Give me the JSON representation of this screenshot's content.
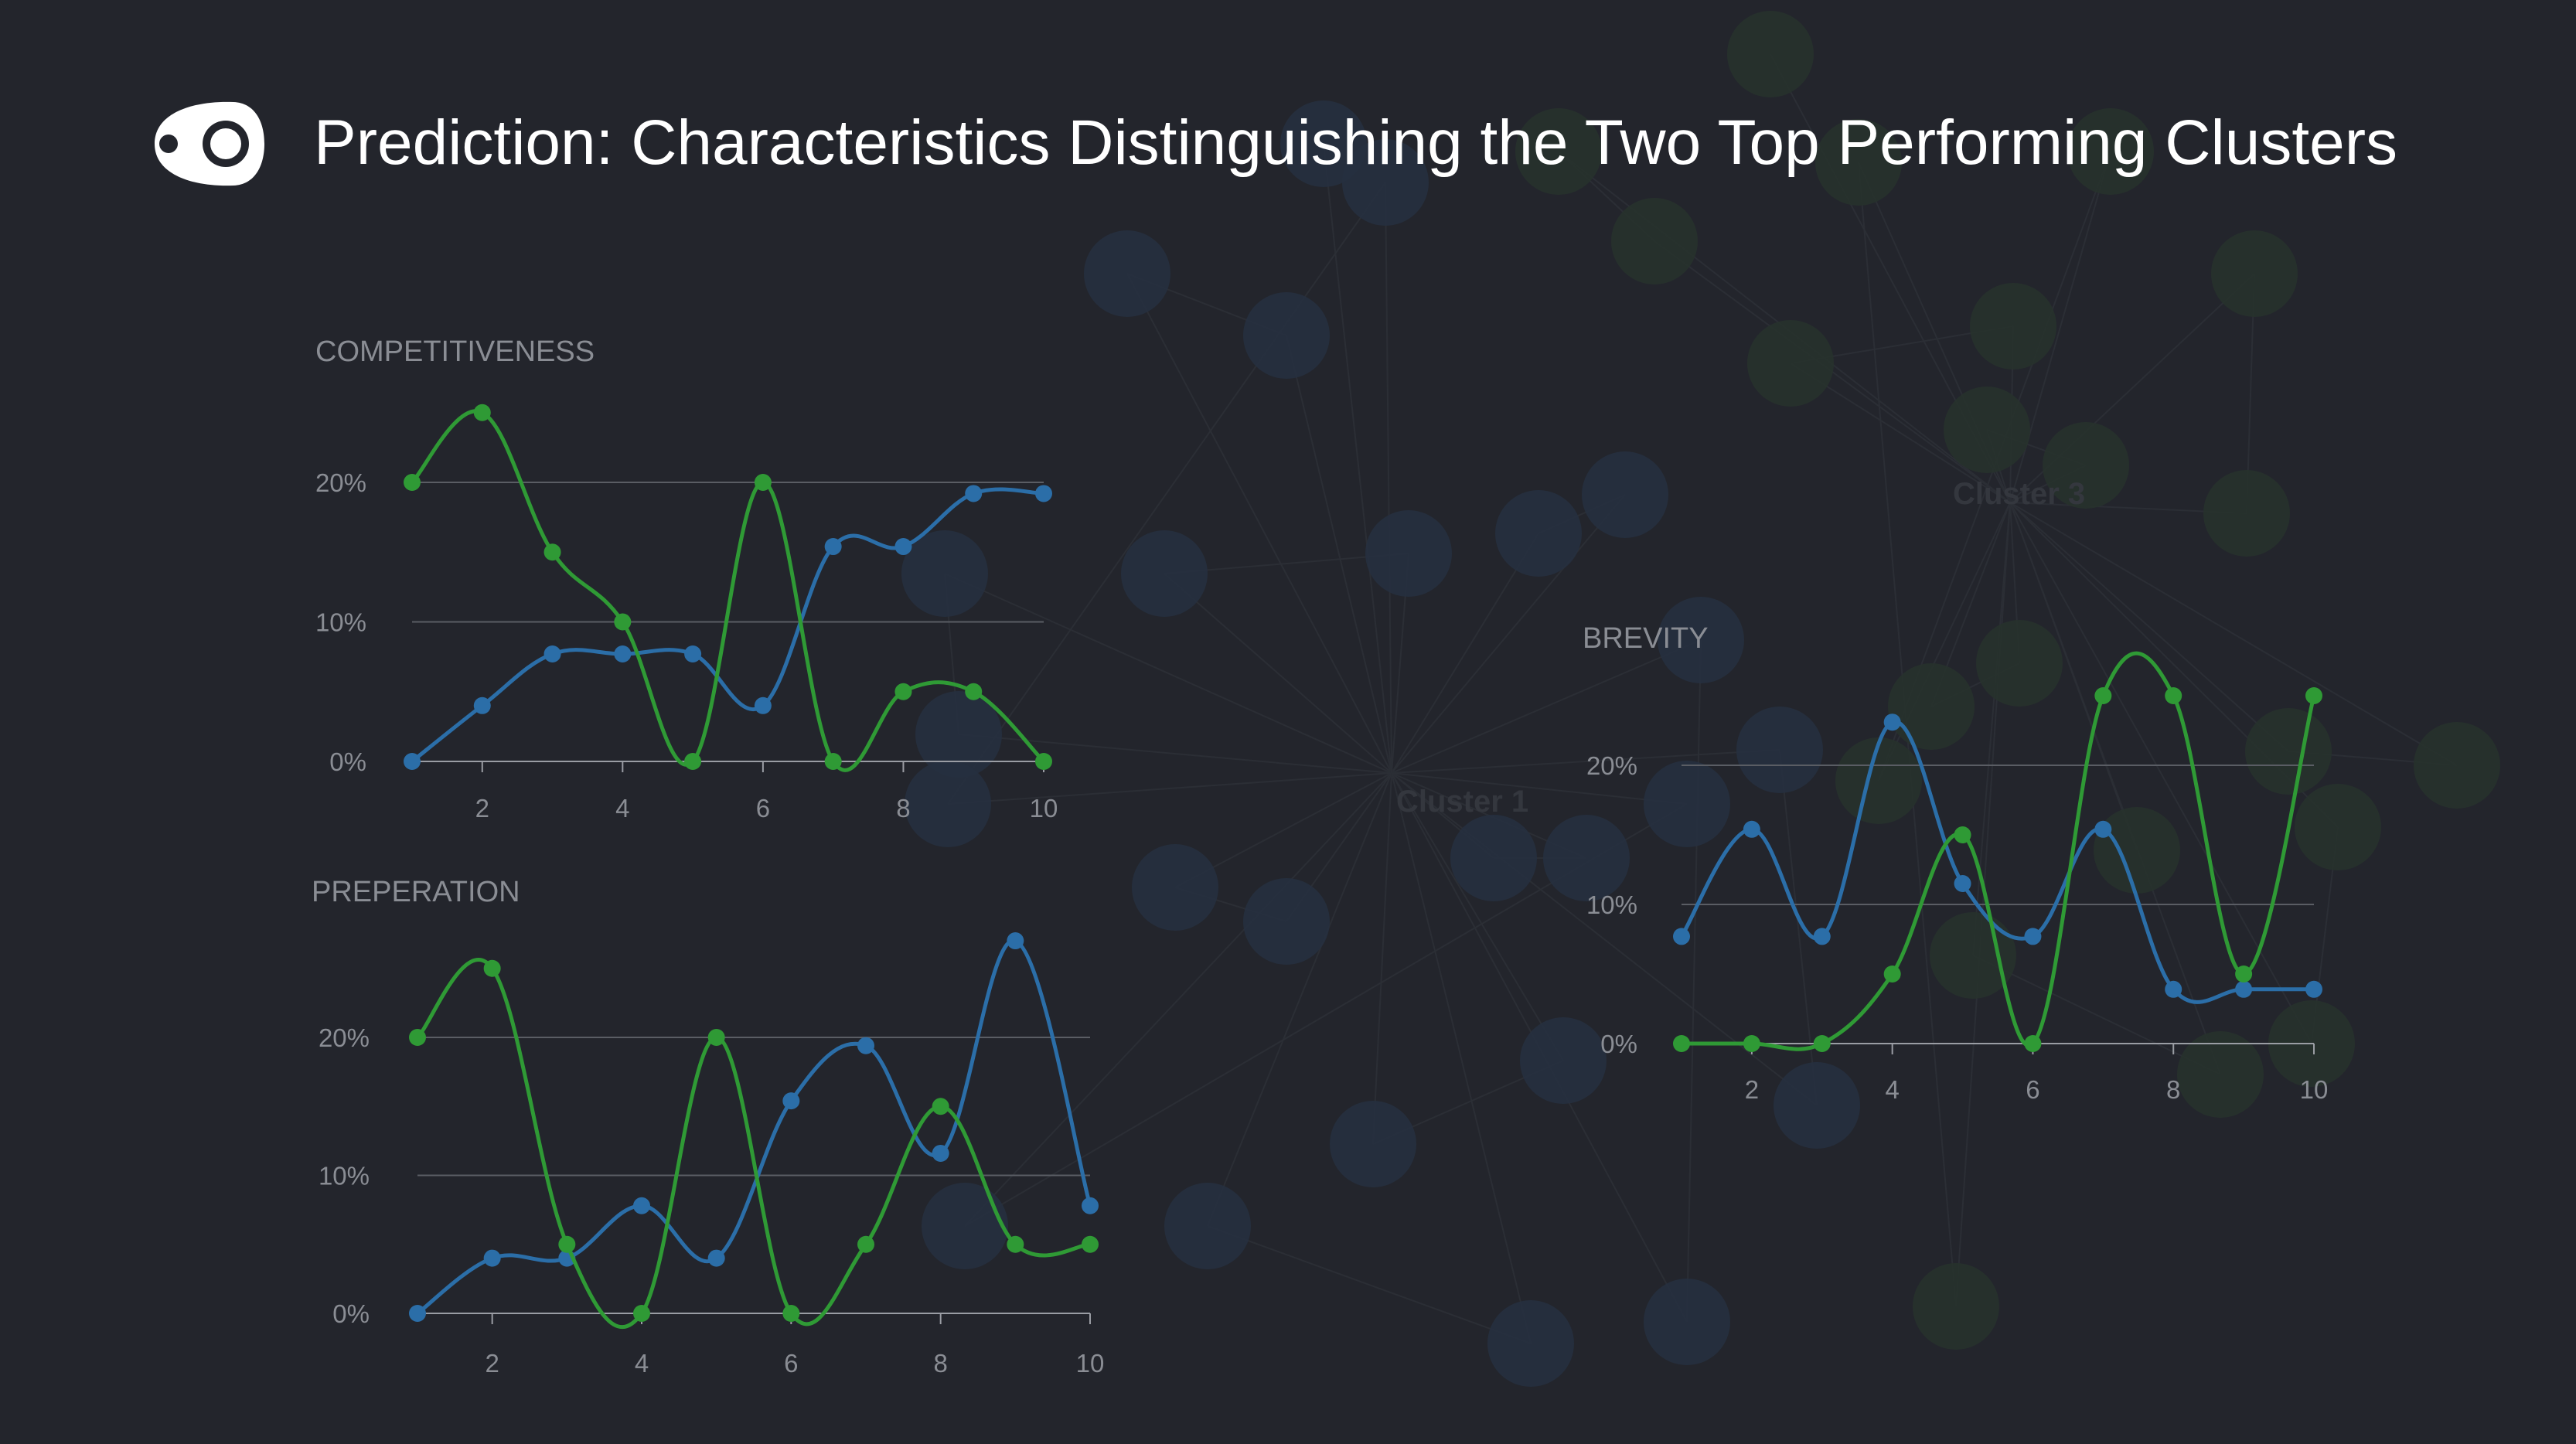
{
  "header": {
    "title": "Prediction: Characteristics Distinguishing the Two Top Performing Clusters",
    "logo_icon": "eye-capsule-icon"
  },
  "background": {
    "labels": [
      "Cluster 1",
      "Cluster 3"
    ]
  },
  "colors": {
    "background": "#23252c",
    "blue": "#2b6ea8",
    "green": "#2f9a35",
    "grid": "#5a5d64",
    "axis": "#9a9da4",
    "text": "#8a8d94"
  },
  "chart_data": [
    {
      "type": "line",
      "title": "COMPETITIVENESS",
      "x": [
        1,
        2,
        3,
        4,
        5,
        6,
        7,
        8,
        9,
        10
      ],
      "xticks": [
        2,
        4,
        6,
        8,
        10
      ],
      "yticks": [
        0,
        10,
        20
      ],
      "ytick_labels": [
        "0%",
        "10%",
        "20%"
      ],
      "xlim": [
        1,
        10
      ],
      "ylim": [
        0,
        20
      ],
      "grid": true,
      "series": [
        {
          "color": "blue",
          "values": [
            0,
            4,
            7.7,
            7.7,
            7.7,
            4,
            15.4,
            15.4,
            19.2,
            19.2
          ]
        },
        {
          "color": "green",
          "values": [
            20,
            25,
            15,
            10,
            0,
            20,
            0,
            5,
            5,
            0
          ]
        }
      ]
    },
    {
      "type": "line",
      "title": "PREPERATION",
      "x": [
        1,
        2,
        3,
        4,
        5,
        6,
        7,
        8,
        9,
        10
      ],
      "xticks": [
        2,
        4,
        6,
        8,
        10
      ],
      "yticks": [
        0,
        10,
        20
      ],
      "ytick_labels": [
        "0%",
        "10%",
        "20%"
      ],
      "xlim": [
        1,
        10
      ],
      "ylim": [
        0,
        20
      ],
      "grid": true,
      "series": [
        {
          "color": "blue",
          "values": [
            0,
            4,
            4,
            7.8,
            4,
            15.4,
            19.4,
            11.6,
            27,
            7.8
          ]
        },
        {
          "color": "green",
          "values": [
            20,
            25,
            5,
            0,
            20,
            0,
            5,
            15,
            5,
            5
          ]
        }
      ]
    },
    {
      "type": "line",
      "title": "BREVITY",
      "x": [
        1,
        2,
        3,
        4,
        5,
        6,
        7,
        8,
        9,
        10
      ],
      "xticks": [
        2,
        4,
        6,
        8,
        10
      ],
      "yticks": [
        0,
        10,
        20
      ],
      "ytick_labels": [
        "0%",
        "10%",
        "20%"
      ],
      "xlim": [
        1,
        10
      ],
      "ylim": [
        0,
        20
      ],
      "grid": true,
      "series": [
        {
          "color": "blue",
          "values": [
            7.7,
            15.4,
            7.7,
            23.1,
            11.5,
            7.7,
            15.4,
            3.9,
            3.9,
            3.9
          ]
        },
        {
          "color": "green",
          "values": [
            0,
            0,
            0,
            5,
            15,
            0,
            25,
            25,
            5,
            25
          ]
        }
      ]
    }
  ]
}
